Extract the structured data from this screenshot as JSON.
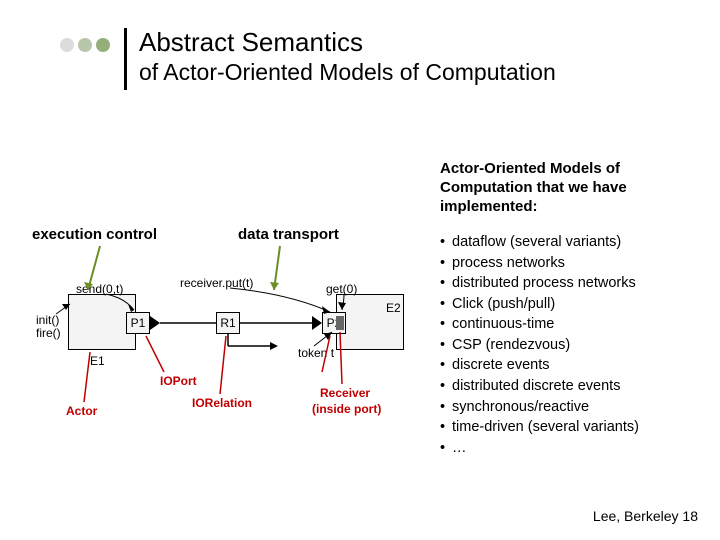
{
  "title": {
    "line1": "Abstract Semantics",
    "line2": "of Actor-Oriented Models of Computation"
  },
  "bullet_colors": [
    "#dcdcdc",
    "#b7c5a8",
    "#94af7a"
  ],
  "intro": "Actor-Oriented Models of Computation that we have implemented:",
  "labels": {
    "exec": "execution control",
    "data": "data transport"
  },
  "list_items": [
    "dataflow (several variants)",
    "process networks",
    "distributed process networks",
    "Click (push/pull)",
    "continuous-time",
    "CSP (rendezvous)",
    "discrete events",
    "distributed discrete events",
    "synchronous/reactive",
    "time-driven (several variants)",
    "…"
  ],
  "footer": "Lee, Berkeley 18",
  "diagram": {
    "init1": "init()",
    "init2": "fire()",
    "send": "send(0,t)",
    "recv": "receiver.put(t)",
    "get": "get(0)",
    "e1": "E1",
    "p1": "P1",
    "r1": "R1",
    "p2": "P2",
    "e2": "E2",
    "ioport": "IOPort",
    "iorel": "IORelation",
    "actor": "Actor",
    "receiver1": "Receiver",
    "receiver2": "(inside port)",
    "token": "token t",
    "colors": {
      "red": "#c00000",
      "fill": "#f4f4f4",
      "green_arrow": "#6b8e23"
    }
  }
}
